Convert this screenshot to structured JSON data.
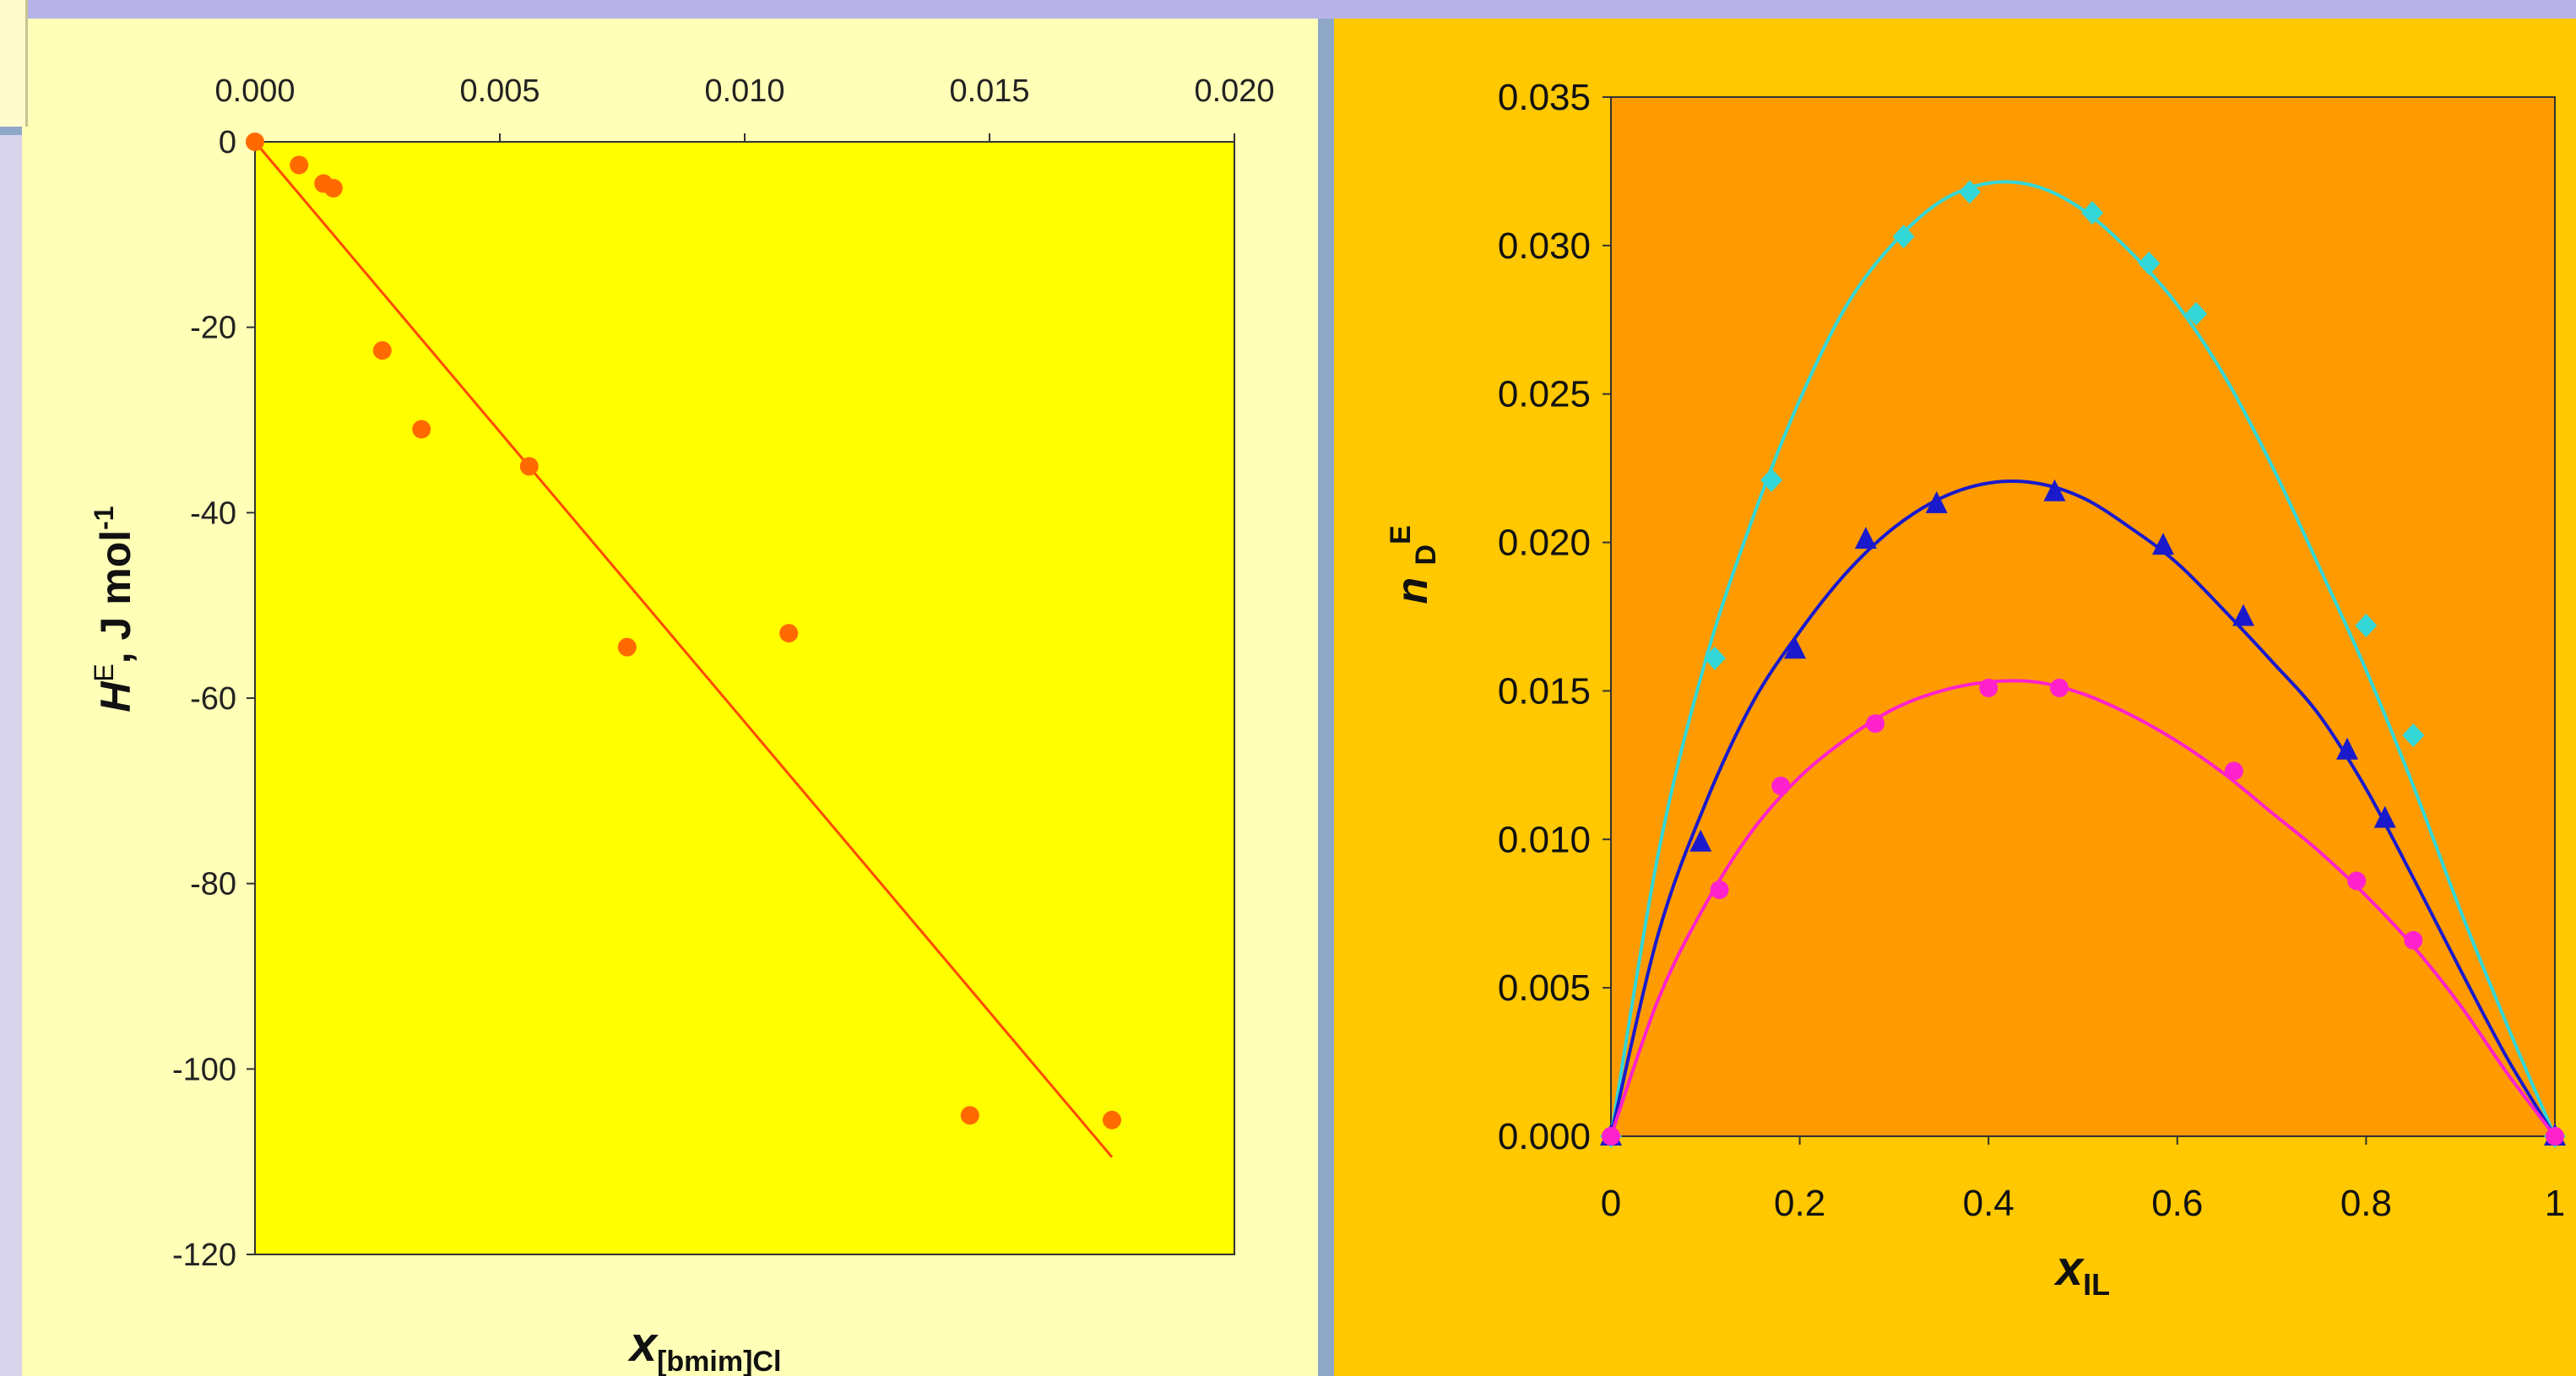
{
  "chart_data": [
    {
      "type": "scatter",
      "xlabel_main": "x",
      "xlabel_sub": "[bmim]Cl",
      "ylabel_main": "H",
      "ylabel_sup": "E",
      "ylabel_rest": ", J mol",
      "ylabel_sup2": "-1",
      "xlim": [
        0,
        0.02
      ],
      "ylim": [
        -120,
        0
      ],
      "x_axis_position": "top",
      "grid": false,
      "xticks": [
        "0.000",
        "0.005",
        "0.010",
        "0.015",
        "0.020"
      ],
      "yticks": [
        "0",
        "-20",
        "-40",
        "-60",
        "-80",
        "-100",
        "-120"
      ],
      "colors": {
        "plot_bg": "#ffff00",
        "marker": "#ff6a00",
        "fit_line": "#ff4a00"
      },
      "series": [
        {
          "marker": "circle",
          "x": [
            0.0,
            0.0009,
            0.0014,
            0.0016,
            0.0026,
            0.0034,
            0.0056,
            0.0076,
            0.0109,
            0.0146,
            0.0175
          ],
          "y": [
            0,
            -2.5,
            -4.5,
            -5,
            -22.5,
            -31,
            -35,
            -54.5,
            -53,
            -105,
            -105.5
          ]
        }
      ],
      "fit_line": {
        "x": [
          0.0,
          0.0175
        ],
        "y": [
          0,
          -109.5
        ]
      }
    },
    {
      "type": "line",
      "xlabel_main": "x",
      "xlabel_sub": "IL",
      "ylabel_main": "n",
      "ylabel_sub": "D",
      "ylabel_sup": "E",
      "xlim": [
        0,
        1
      ],
      "ylim": [
        0,
        0.035
      ],
      "grid": false,
      "xticks": [
        "0",
        "0.2",
        "0.4",
        "0.6",
        "0.8",
        "1"
      ],
      "yticks": [
        "0.000",
        "0.005",
        "0.010",
        "0.015",
        "0.020",
        "0.025",
        "0.030",
        "0.035"
      ],
      "colors": {
        "plot_bg": "#ff9b00"
      },
      "series": [
        {
          "color": "#33d6d6",
          "marker": "diamond",
          "x": [
            0,
            0.11,
            0.17,
            0.31,
            0.38,
            0.51,
            0.57,
            0.62,
            0.8,
            0.85,
            1
          ],
          "y": [
            0,
            0.0161,
            0.0221,
            0.0303,
            0.0318,
            0.0311,
            0.0294,
            0.0277,
            0.0172,
            0.0135,
            0
          ],
          "curve_x": [
            0,
            0.05,
            0.1,
            0.15,
            0.2,
            0.25,
            0.3,
            0.35,
            0.4,
            0.45,
            0.5,
            0.55,
            0.6,
            0.65,
            0.7,
            0.75,
            0.8,
            0.85,
            0.9,
            0.95,
            1
          ],
          "curve_y": [
            0,
            0.0095,
            0.016,
            0.0208,
            0.0248,
            0.028,
            0.0301,
            0.0315,
            0.0321,
            0.032,
            0.0312,
            0.0298,
            0.028,
            0.0256,
            0.0226,
            0.0192,
            0.0157,
            0.0118,
            0.0076,
            0.0037,
            0
          ]
        },
        {
          "color": "#1a1acc",
          "marker": "triangle",
          "x": [
            0,
            0.095,
            0.195,
            0.27,
            0.345,
            0.47,
            0.585,
            0.67,
            0.78,
            0.82,
            1
          ],
          "y": [
            0,
            0.0099,
            0.0164,
            0.0201,
            0.0213,
            0.0217,
            0.0199,
            0.0175,
            0.013,
            0.0107,
            0
          ],
          "curve_x": [
            0,
            0.05,
            0.1,
            0.15,
            0.2,
            0.25,
            0.3,
            0.35,
            0.4,
            0.45,
            0.5,
            0.55,
            0.6,
            0.65,
            0.7,
            0.75,
            0.8,
            0.85,
            0.9,
            0.95,
            1
          ],
          "curve_y": [
            0,
            0.0068,
            0.0112,
            0.0146,
            0.017,
            0.019,
            0.0205,
            0.0215,
            0.022,
            0.022,
            0.0215,
            0.0205,
            0.0193,
            0.0177,
            0.016,
            0.0142,
            0.0117,
            0.0087,
            0.0056,
            0.0026,
            0
          ]
        },
        {
          "color": "#ff22cc",
          "marker": "circle",
          "x": [
            0,
            0.115,
            0.18,
            0.28,
            0.4,
            0.475,
            0.66,
            0.79,
            0.85,
            1
          ],
          "y": [
            0,
            0.0083,
            0.0118,
            0.0139,
            0.0151,
            0.0151,
            0.0123,
            0.0086,
            0.0066,
            0
          ],
          "curve_x": [
            0,
            0.05,
            0.1,
            0.15,
            0.2,
            0.25,
            0.3,
            0.35,
            0.4,
            0.45,
            0.5,
            0.55,
            0.6,
            0.65,
            0.7,
            0.75,
            0.8,
            0.85,
            0.9,
            0.95,
            1
          ],
          "curve_y": [
            0,
            0.0046,
            0.0078,
            0.0103,
            0.0121,
            0.0134,
            0.0144,
            0.015,
            0.0153,
            0.0153,
            0.0149,
            0.0142,
            0.0133,
            0.0122,
            0.0109,
            0.0096,
            0.0081,
            0.0064,
            0.0044,
            0.0021,
            0
          ]
        }
      ]
    }
  ]
}
